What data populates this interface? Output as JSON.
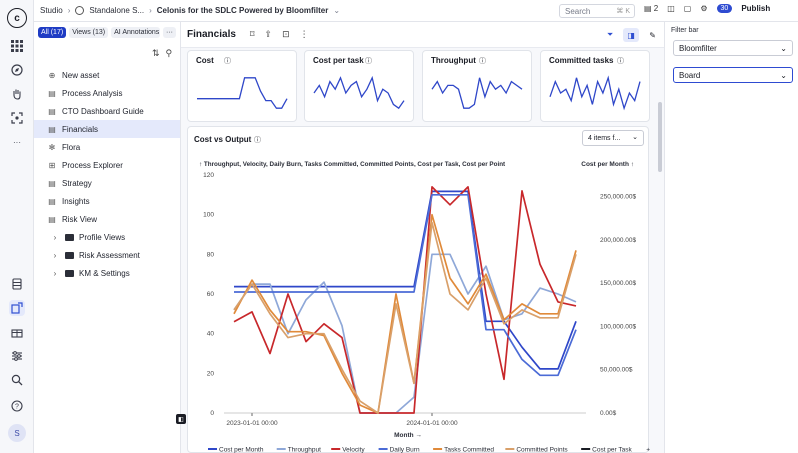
{
  "topbar": {
    "crumbs": [
      "Studio",
      "Standalone S...",
      "Celonis for the SDLC Powered by Bloomfilter"
    ],
    "search_placeholder": "Search",
    "search_shortcut": "⌘ K",
    "storage_count": "2",
    "notification_count": "30",
    "publish_label": "Publish"
  },
  "sidebar": {
    "tabs": [
      "All (17)",
      "Views (13)",
      "AI Annotations A"
    ],
    "more_label": "···",
    "items": [
      {
        "label": "New asset",
        "icon": "plus-icon"
      },
      {
        "label": "Process Analysis",
        "icon": "analysis-icon"
      },
      {
        "label": "CTO Dashboard Guide",
        "icon": "view-icon"
      },
      {
        "label": "Financials",
        "icon": "view-icon"
      },
      {
        "label": "Flora",
        "icon": "flora-icon"
      },
      {
        "label": "Process Explorer",
        "icon": "explorer-icon"
      },
      {
        "label": "Strategy",
        "icon": "view-icon"
      },
      {
        "label": "Insights",
        "icon": "view-icon"
      },
      {
        "label": "Risk View",
        "icon": "view-icon"
      },
      {
        "label": "Profile Views",
        "icon": "folder-icon"
      },
      {
        "label": "Risk Assessment",
        "icon": "folder-icon"
      },
      {
        "label": "KM & Settings",
        "icon": "folder-icon"
      }
    ]
  },
  "main": {
    "title": "Financials",
    "kpis": [
      {
        "title": "Cost"
      },
      {
        "title": "Cost per task"
      },
      {
        "title": "Throughput"
      },
      {
        "title": "Committed tasks"
      }
    ],
    "chart_title": "Cost vs Output",
    "dropdown_label": "4 items f..."
  },
  "filter": {
    "title": "Filter bar",
    "select1": "Bloomfilter",
    "select2": "Board"
  },
  "chart_data": {
    "type": "line",
    "title": "Cost vs Output",
    "left_axis_label": "Throughput, Velocity, Daily Burn, Tasks Committed, Committed Points, Cost per Task, Cost per Point",
    "right_axis_label": "Cost per Month",
    "xlabel": "Month",
    "x_ticks": [
      "2023-01-01 00:00",
      "2024-01-01 00:00"
    ],
    "y_left_ticks": [
      "0",
      "20",
      "40",
      "60",
      "80",
      "100",
      "120"
    ],
    "y_right_ticks": [
      "0.00$",
      "50,000.00$",
      "100,000.00$",
      "150,000.00$",
      "200,000.00$",
      "250,000.00$"
    ],
    "ylim_left": [
      0,
      120
    ],
    "ylim_right": [
      0,
      275000
    ],
    "x_index": [
      0,
      1,
      2,
      3,
      4,
      5,
      6,
      7,
      8,
      9,
      10,
      11,
      12,
      13,
      14,
      15,
      16,
      17,
      18,
      19
    ],
    "series": [
      {
        "name": "Cost per Month",
        "color": "#2f47c9",
        "axis": "right",
        "values": [
          146000,
          146000,
          146000,
          146000,
          146000,
          146000,
          146000,
          146000,
          146000,
          146000,
          146000,
          256000,
          256000,
          256000,
          106000,
          106000,
          76000,
          51000,
          51000,
          106000
        ]
      },
      {
        "name": "Throughput",
        "color": "#8fa8d8",
        "axis": "left",
        "values": [
          52,
          65,
          65,
          40,
          57,
          66,
          44,
          0,
          0,
          0,
          8,
          80,
          80,
          60,
          74,
          47,
          50,
          63,
          60,
          56
        ]
      },
      {
        "name": "Velocity",
        "color": "#c8282b",
        "axis": "left",
        "values": [
          46,
          51,
          30,
          60,
          36,
          45,
          38,
          0,
          0,
          0,
          0,
          114,
          105,
          114,
          60,
          17,
          112,
          75,
          56,
          54
        ]
      },
      {
        "name": "Daily Burn",
        "color": "#4b6bd6",
        "axis": "left",
        "values": [
          61,
          61,
          61,
          61,
          61,
          61,
          61,
          61,
          61,
          61,
          61,
          110,
          110,
          110,
          42,
          42,
          27,
          19,
          19,
          42
        ]
      },
      {
        "name": "Tasks Committed",
        "color": "#e08a3a",
        "axis": "left",
        "values": [
          50,
          67,
          52,
          41,
          41,
          39,
          20,
          4,
          0,
          60,
          15,
          100,
          68,
          55,
          70,
          47,
          55,
          50,
          50,
          82
        ]
      },
      {
        "name": "Committed Points",
        "color": "#d9a06a",
        "axis": "left",
        "values": [
          52,
          65,
          50,
          38,
          40,
          40,
          22,
          6,
          0,
          55,
          15,
          96,
          60,
          52,
          68,
          45,
          52,
          48,
          48,
          80
        ]
      },
      {
        "name": "Cost per Task",
        "color": "#1a1c24",
        "axis": "left",
        "values": []
      }
    ],
    "legend": [
      "Cost per Month",
      "Throughput",
      "Velocity",
      "Daily Burn",
      "Tasks Committed",
      "Committed Points",
      "Cost per Task"
    ],
    "legend_more": "+1",
    "legend_position": "bottom",
    "grid": false
  },
  "kpi_sparklines": [
    [
      0.35,
      0.35,
      0.35,
      0.35,
      0.35,
      0.35,
      0.35,
      0.35,
      0.35,
      0.9,
      0.9,
      0.9,
      0.55,
      0.3,
      0.3,
      0.1,
      0.1,
      0.35
    ],
    [
      0.5,
      0.7,
      0.4,
      0.8,
      0.6,
      0.9,
      0.5,
      0.7,
      0.8,
      0.4,
      0.6,
      0.9,
      0.3,
      0.6,
      0.5,
      0.2,
      0.1,
      0.3
    ],
    [
      0.6,
      0.8,
      0.5,
      0.7,
      0.7,
      0.6,
      0.1,
      0.1,
      0.2,
      0.9,
      0.4,
      0.8,
      0.6,
      0.7,
      0.5,
      0.8,
      0.7,
      0.6
    ],
    [
      0.4,
      0.8,
      0.5,
      0.6,
      0.3,
      0.9,
      0.4,
      0.7,
      0.2,
      0.8,
      0.5,
      0.9,
      0.2,
      0.6,
      0.1,
      0.5,
      0.3,
      0.8
    ]
  ]
}
